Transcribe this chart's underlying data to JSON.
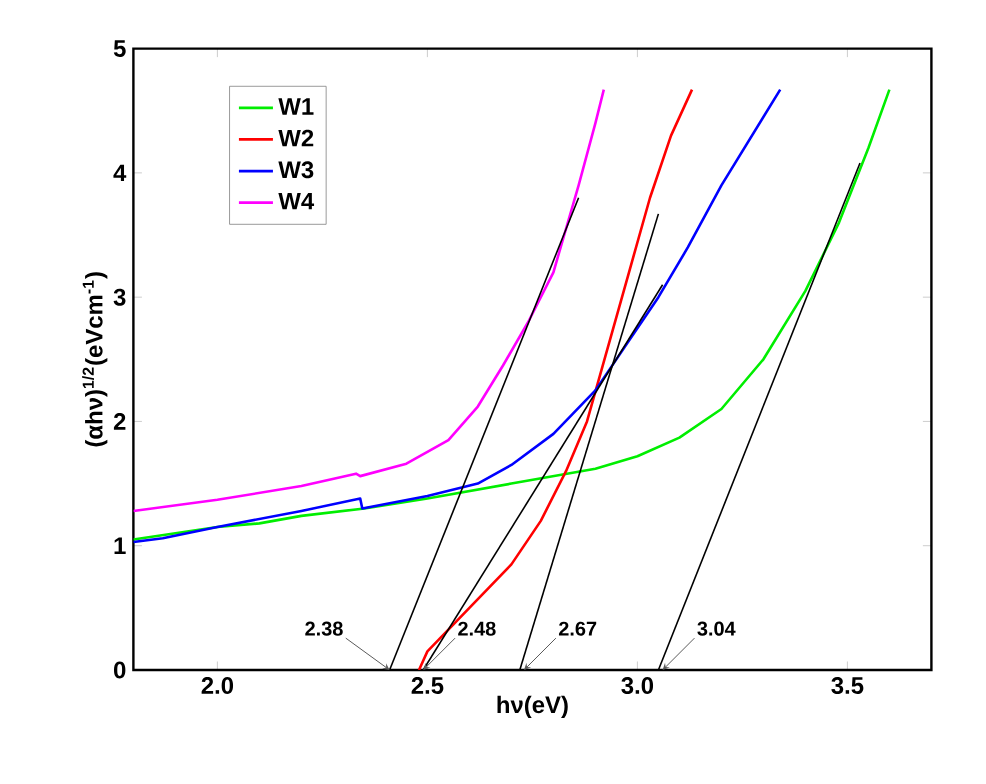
{
  "chart_data": {
    "type": "line",
    "xlabel": "hν(eV)",
    "ylabel": "(αhν)$^{1/2}$(eVcm$^{-1}$)",
    "xlim": [
      1.8,
      3.7
    ],
    "ylim": [
      0,
      5
    ],
    "xticks": [
      {
        "value": 2,
        "label": "2.0"
      },
      {
        "value": 2.5,
        "label": "2.5"
      },
      {
        "value": 3,
        "label": "3.0"
      },
      {
        "value": 3.5,
        "label": "3.5"
      }
    ],
    "yticks": [
      0,
      1,
      2,
      3,
      4,
      5
    ],
    "legend": "top left",
    "grid": false,
    "marker": "none",
    "line_style": "solid",
    "series": [
      {
        "name": "W1",
        "color": "#00ee00",
        "x": [
          1.8,
          2.0,
          2.1,
          2.2,
          2.35,
          2.5,
          2.7,
          2.9,
          3.0,
          3.1,
          3.2,
          3.3,
          3.4,
          3.48,
          3.55,
          3.6
        ],
        "values": [
          1.05,
          1.15,
          1.18,
          1.24,
          1.3,
          1.38,
          1.5,
          1.62,
          1.72,
          1.87,
          2.1,
          2.5,
          3.05,
          3.6,
          4.2,
          4.67
        ]
      },
      {
        "name": "W2",
        "color": "#ff0000",
        "x": [
          2.48,
          2.5,
          2.6,
          2.7,
          2.77,
          2.83,
          2.88,
          2.93,
          2.98,
          3.03,
          3.08,
          3.13
        ],
        "values": [
          0,
          0.15,
          0.5,
          0.85,
          1.2,
          1.6,
          2.0,
          2.6,
          3.2,
          3.8,
          4.3,
          4.67
        ]
      },
      {
        "name": "W3",
        "color": "#0000ff",
        "x": [
          1.8,
          1.87,
          2.0,
          2.2,
          2.34,
          2.345,
          2.5,
          2.62,
          2.7,
          2.8,
          2.9,
          2.97,
          3.05,
          3.12,
          3.2,
          3.34
        ],
        "values": [
          1.03,
          1.06,
          1.15,
          1.28,
          1.38,
          1.3,
          1.4,
          1.5,
          1.65,
          1.9,
          2.25,
          2.6,
          3.0,
          3.4,
          3.9,
          4.67
        ]
      },
      {
        "name": "W4",
        "color": "#ff00ff",
        "x": [
          1.8,
          2.0,
          2.2,
          2.33,
          2.34,
          2.45,
          2.55,
          2.62,
          2.68,
          2.74,
          2.8,
          2.86,
          2.9,
          2.92
        ],
        "values": [
          1.28,
          1.37,
          1.48,
          1.58,
          1.56,
          1.66,
          1.85,
          2.12,
          2.45,
          2.8,
          3.2,
          3.9,
          4.4,
          4.67
        ]
      },
      {
        "color": "#000000",
        "x": [
          2.41,
          2.86
        ],
        "values": [
          0,
          3.8
        ]
      },
      {
        "color": "#000000",
        "x": [
          2.49,
          3.06
        ],
        "values": [
          0,
          3.1
        ]
      },
      {
        "color": "#000000",
        "x": [
          2.72,
          3.05
        ],
        "values": [
          0,
          3.67
        ]
      },
      {
        "color": "#000000",
        "x": [
          3.05,
          3.53
        ],
        "values": [
          0,
          4.08
        ]
      }
    ],
    "annotations": [
      {
        "text": "2.38",
        "x": 2.41,
        "y": 0
      },
      {
        "text": "2.48",
        "x": 2.49,
        "y": 0
      },
      {
        "text": "2.67",
        "x": 2.73,
        "y": 0
      },
      {
        "text": "3.04",
        "x": 3.06,
        "y": 0
      }
    ]
  }
}
